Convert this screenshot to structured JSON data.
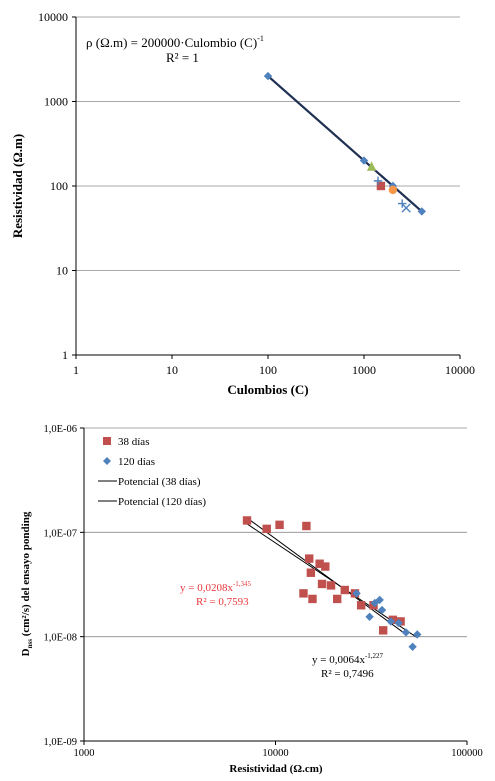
{
  "chart_data": [
    {
      "type": "scatter",
      "title": "",
      "xlabel": "Culombios (C)",
      "ylabel": "Resistividad (Ω.m)",
      "x_scale": "log",
      "y_scale": "log",
      "xlim": [
        1,
        10000
      ],
      "ylim": [
        1,
        10000
      ],
      "x_ticks": [
        "1",
        "10",
        "100",
        "1000",
        "10000"
      ],
      "y_ticks": [
        "1",
        "10",
        "100",
        "1000",
        "10000"
      ],
      "grid": "horizontal",
      "equation": "ρ (Ω.m) = 200000·Culombio (C)",
      "equation_exp": "-1",
      "r2": "R² = 1",
      "fit_line": [
        [
          100,
          2000
        ],
        [
          4000,
          50
        ]
      ],
      "series": [
        {
          "color": "#4f81bd",
          "marker": "diamond",
          "points": [
            [
              100,
              2000
            ],
            [
              1000,
              200
            ],
            [
              2000,
              100
            ],
            [
              4000,
              50
            ]
          ]
        },
        {
          "color": "#c0504d",
          "marker": "square",
          "points": [
            [
              1500,
              100
            ]
          ]
        },
        {
          "color": "#9bbb59",
          "marker": "triangle",
          "points": [
            [
              1200,
              170
            ]
          ]
        },
        {
          "color": "#f79646",
          "marker": "circle",
          "points": [
            [
              2000,
              90
            ]
          ]
        },
        {
          "color": "#4f81bd",
          "marker": "x",
          "points": [
            [
              2750,
              55
            ]
          ]
        },
        {
          "color": "#4f81bd",
          "marker": "plus",
          "points": [
            [
              2500,
              62
            ],
            [
              1400,
              115
            ]
          ]
        }
      ]
    },
    {
      "type": "scatter",
      "title": "",
      "xlabel": "Resistividad (Ω.cm)",
      "ylabel_main": "D",
      "ylabel_sub": "nss",
      "ylabel_rest": " (cm²/s) del ensayo ponding",
      "x_scale": "log",
      "y_scale": "log",
      "xlim": [
        1000,
        100000
      ],
      "ylim": [
        1e-09,
        1e-06
      ],
      "x_ticks": [
        "1000",
        "10000",
        "100000"
      ],
      "y_ticks": [
        "1,0E-09",
        "1,0E-08",
        "1,0E-07",
        "1,0E-06"
      ],
      "grid": "horizontal",
      "legend_position": "top-left",
      "legend": [
        {
          "label": "38 días",
          "marker": "square",
          "color": "#c0504d"
        },
        {
          "label": "120 días",
          "marker": "diamond",
          "color": "#4f81bd"
        },
        {
          "label": "Potencial (38 días)",
          "marker": "line",
          "color": "#000000"
        },
        {
          "label": "Potencial (120 días)",
          "marker": "line",
          "color": "#000000"
        }
      ],
      "annotation_38": {
        "equation": "y = 0,0208x",
        "exp": "-1,345",
        "r2": "R² = 0,7593",
        "color": "#e8383d"
      },
      "annotation_120": {
        "equation": "y = 0,0064x",
        "exp": "-1,227",
        "r2": "R² = 0,7496",
        "color": "#000000"
      },
      "series": [
        {
          "name": "38 días",
          "marker": "square",
          "color": "#c0504d",
          "points": [
            [
              7100,
              1.3e-07
            ],
            [
              9000,
              1.08e-07
            ],
            [
              10500,
              1.18e-07
            ],
            [
              14500,
              1.15e-07
            ],
            [
              15000,
              5.6e-08
            ],
            [
              15300,
              4.1e-08
            ],
            [
              17000,
              5e-08
            ],
            [
              18200,
              4.7e-08
            ],
            [
              17500,
              3.2e-08
            ],
            [
              19500,
              3.1e-08
            ],
            [
              14000,
              2.6e-08
            ],
            [
              15600,
              2.3e-08
            ],
            [
              21000,
              2.3e-08
            ],
            [
              23000,
              2.8e-08
            ],
            [
              26000,
              2.6e-08
            ],
            [
              28000,
              2e-08
            ],
            [
              32500,
              2e-08
            ],
            [
              36500,
              1.15e-08
            ],
            [
              41000,
              1.45e-08
            ],
            [
              45000,
              1.4e-08
            ]
          ]
        },
        {
          "name": "120 días",
          "marker": "diamond",
          "color": "#4f81bd",
          "points": [
            [
              26500,
              2.6e-08
            ],
            [
              31000,
              1.55e-08
            ],
            [
              33000,
              2.1e-08
            ],
            [
              35000,
              2.25e-08
            ],
            [
              36000,
              1.8e-08
            ],
            [
              40000,
              1.4e-08
            ],
            [
              44000,
              1.35e-08
            ],
            [
              48000,
              1.1e-08
            ],
            [
              52000,
              8e-09
            ],
            [
              55000,
              1.05e-08
            ]
          ]
        }
      ],
      "fit_lines": [
        {
          "name": "Potencial (38 días)",
          "x": [
            7000,
            46000
          ]
        },
        {
          "name": "Potencial (120 días)",
          "x": [
            7000,
            55000
          ]
        }
      ]
    }
  ]
}
